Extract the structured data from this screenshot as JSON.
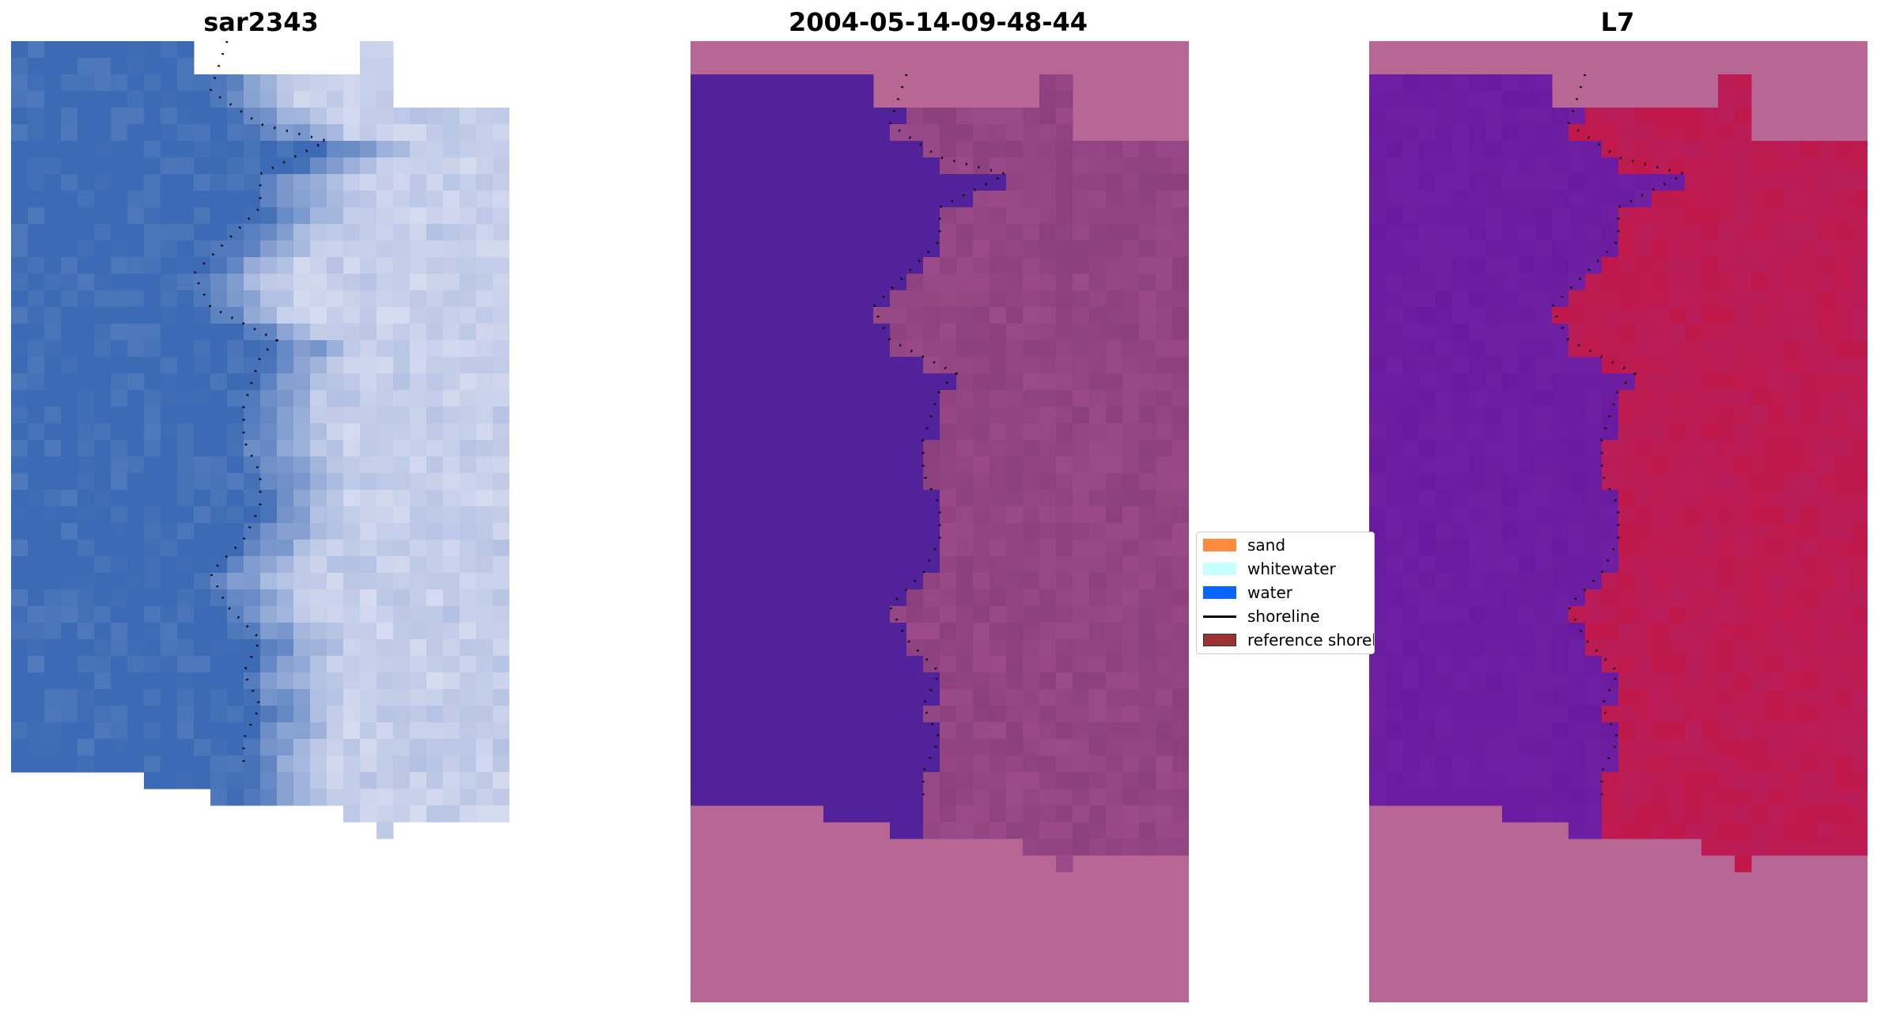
{
  "panels": [
    {
      "title": "sar2343"
    },
    {
      "title": "2004-05-14-09-48-44"
    },
    {
      "title": "L7"
    }
  ],
  "legend": {
    "items": [
      {
        "label": "sand",
        "color": "#ff8c3c",
        "kind": "patch"
      },
      {
        "label": "whitewater",
        "color": "#c8ffff",
        "kind": "patch"
      },
      {
        "label": "water",
        "color": "#0a64ff",
        "kind": "patch"
      },
      {
        "label": "shoreline",
        "color": "#000000",
        "kind": "line"
      },
      {
        "label": "reference shoreline",
        "color": "#9b3232",
        "kind": "patch"
      }
    ]
  },
  "colors": {
    "nodata": "#b86694",
    "water_class": "#52229a",
    "land_class": "#9a4a88",
    "rgb_water": "#3c6ab4",
    "rgb_surf": "#d6dcf0",
    "mndwi_water": "#6a1a9e",
    "mndwi_land": "#c0184a"
  }
}
